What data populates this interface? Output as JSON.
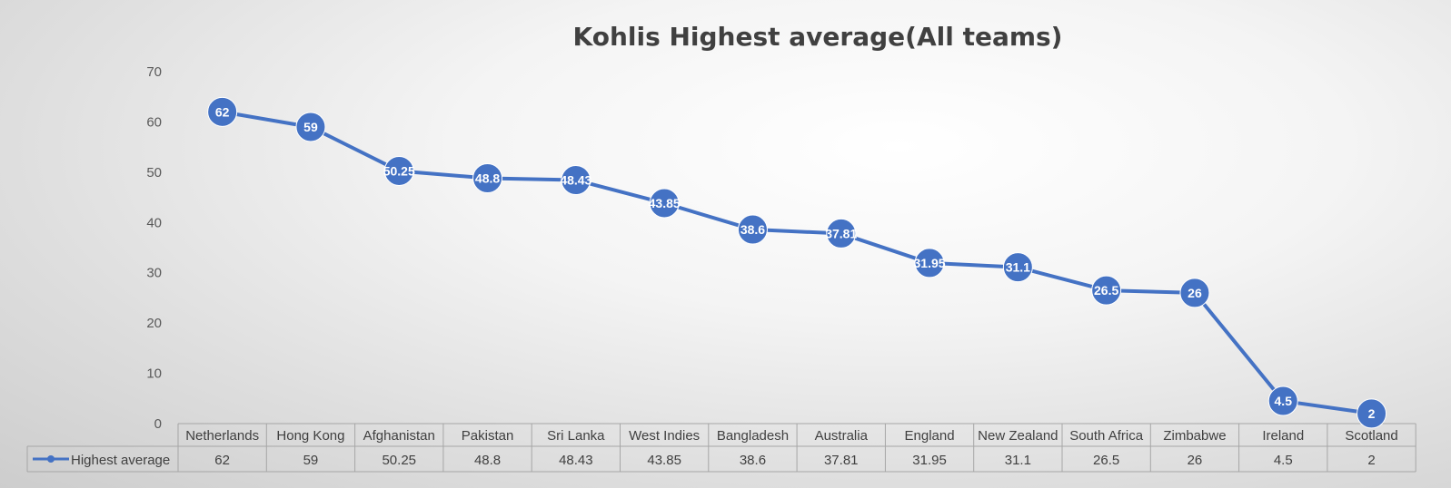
{
  "chart_data": {
    "type": "line",
    "title": "Kohlis Highest average(All teams)",
    "categories": [
      "Netherlands",
      "Hong Kong",
      "Afghanistan",
      "Pakistan",
      "Sri Lanka",
      "West Indies",
      "Bangladesh",
      "Australia",
      "England",
      "New Zealand",
      "South Africa",
      "Zimbabwe",
      "Ireland",
      "Scotland"
    ],
    "series": [
      {
        "name": "Highest average",
        "values": [
          62,
          59,
          50.25,
          48.8,
          48.43,
          43.85,
          38.6,
          37.81,
          31.95,
          31.1,
          26.5,
          26,
          4.5,
          2
        ],
        "color": "#4472C4"
      }
    ],
    "value_labels": [
      "62",
      "59",
      "50.25",
      "48.8",
      "48.43",
      "43.85",
      "38.6",
      "37.81",
      "31.95",
      "31.1",
      "26.5",
      "26",
      "4.5",
      "2"
    ],
    "ylim": [
      0,
      70
    ],
    "yticks": [
      0,
      10,
      20,
      30,
      40,
      50,
      60,
      70
    ],
    "grid": false,
    "legend": "data-table",
    "data_table": true
  }
}
